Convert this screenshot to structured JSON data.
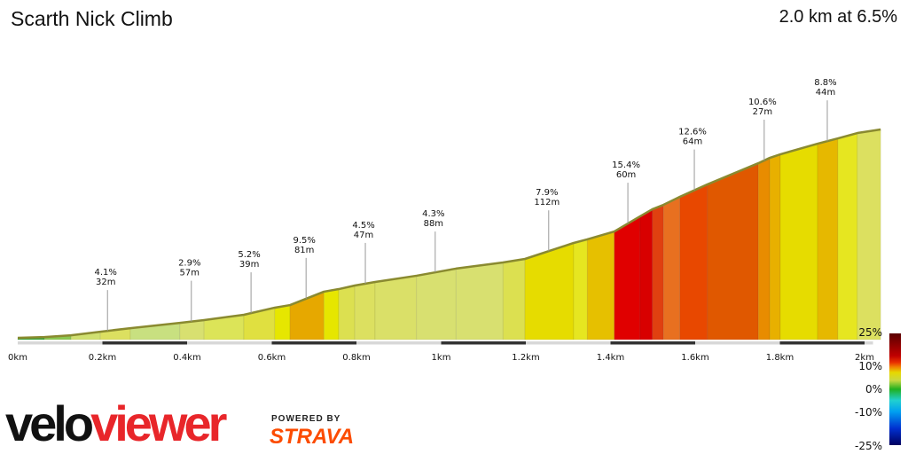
{
  "header": {
    "title": "Scarth Nick Climb",
    "summary": "2.0 km at 6.5%"
  },
  "branding": {
    "logo_a": "velo",
    "logo_b": "viewer",
    "powered_by": "POWERED BY",
    "partner": "STRAVA"
  },
  "chart_data": {
    "type": "area",
    "xlabel": "",
    "ylabel": "",
    "xlim": [
      0,
      2.04
    ],
    "x_ticks": [
      "0km",
      "0.2km",
      "0.4km",
      "0.6km",
      "0.8km",
      "1km",
      "1.2km",
      "1.4km",
      "1.6km",
      "1.8km",
      "2km"
    ],
    "x_tick_values": [
      0,
      0.2,
      0.4,
      0.6,
      0.8,
      1.0,
      1.2,
      1.4,
      1.6,
      1.8,
      2.0
    ],
    "profile": {
      "distance_km": [
        0,
        0.063,
        0.126,
        0.195,
        0.266,
        0.383,
        0.44,
        0.534,
        0.607,
        0.643,
        0.723,
        0.758,
        0.796,
        0.844,
        0.942,
        1.035,
        1.146,
        1.198,
        1.313,
        1.345,
        1.409,
        1.47,
        1.499,
        1.525,
        1.564,
        1.629,
        1.749,
        1.776,
        1.801,
        1.889,
        1.937,
        1.983,
        2.038
      ],
      "elevation_m": [
        1.1,
        1.6,
        2.7,
        4.9,
        7.1,
        10.4,
        12.1,
        15.4,
        19.8,
        21.4,
        29.7,
        31.3,
        33.5,
        35.7,
        39.6,
        44.0,
        47.8,
        50.0,
        59.9,
        62.1,
        67.0,
        76.4,
        80.8,
        83.5,
        88.5,
        96.2,
        109.3,
        112.6,
        114.8,
        121.4,
        124.7,
        128.0,
        130.2
      ],
      "segment_colors": [
        "#3aa83a",
        "#8cc850",
        "#d0e070",
        "#dce060",
        "#c8e080",
        "#d8e070",
        "#dce458",
        "#e0e040",
        "#e6e600",
        "#e6a800",
        "#e6e600",
        "#dce050",
        "#dce060",
        "#dae068",
        "#d8e070",
        "#d8e070",
        "#dce050",
        "#e6dc00",
        "#e6e620",
        "#e6c000",
        "#e00000",
        "#d80000",
        "#e04010",
        "#e87020",
        "#e84800",
        "#e05800",
        "#e88c00",
        "#e8b000",
        "#e6dc00",
        "#e6b800",
        "#e6e620",
        "#dce060"
      ]
    },
    "annotations": [
      {
        "km": 0.212,
        "gradient": "4.1%",
        "length": "32m"
      },
      {
        "km": 0.41,
        "gradient": "2.9%",
        "length": "57m"
      },
      {
        "km": 0.551,
        "gradient": "5.2%",
        "length": "39m"
      },
      {
        "km": 0.681,
        "gradient": "9.5%",
        "length": "81m"
      },
      {
        "km": 0.821,
        "gradient": "4.5%",
        "length": "47m"
      },
      {
        "km": 0.986,
        "gradient": "4.3%",
        "length": "88m"
      },
      {
        "km": 1.254,
        "gradient": "7.9%",
        "length": "112m"
      },
      {
        "km": 1.441,
        "gradient": "15.4%",
        "length": "60m"
      },
      {
        "km": 1.598,
        "gradient": "12.6%",
        "length": "64m"
      },
      {
        "km": 1.763,
        "gradient": "10.6%",
        "length": "27m"
      },
      {
        "km": 1.912,
        "gradient": "8.8%",
        "length": "44m"
      }
    ],
    "color_scale": {
      "labels": [
        "25%",
        "10%",
        "0%",
        "-10%",
        "-25%"
      ],
      "values": [
        25,
        10,
        0,
        -10,
        -25
      ],
      "colors": [
        "#5a0000",
        "#c00000",
        "#e83000",
        "#f08000",
        "#e6d800",
        "#c8d840",
        "#20b020",
        "#20d0d0",
        "#00a0f0",
        "#0030d0",
        "#000060"
      ]
    }
  }
}
